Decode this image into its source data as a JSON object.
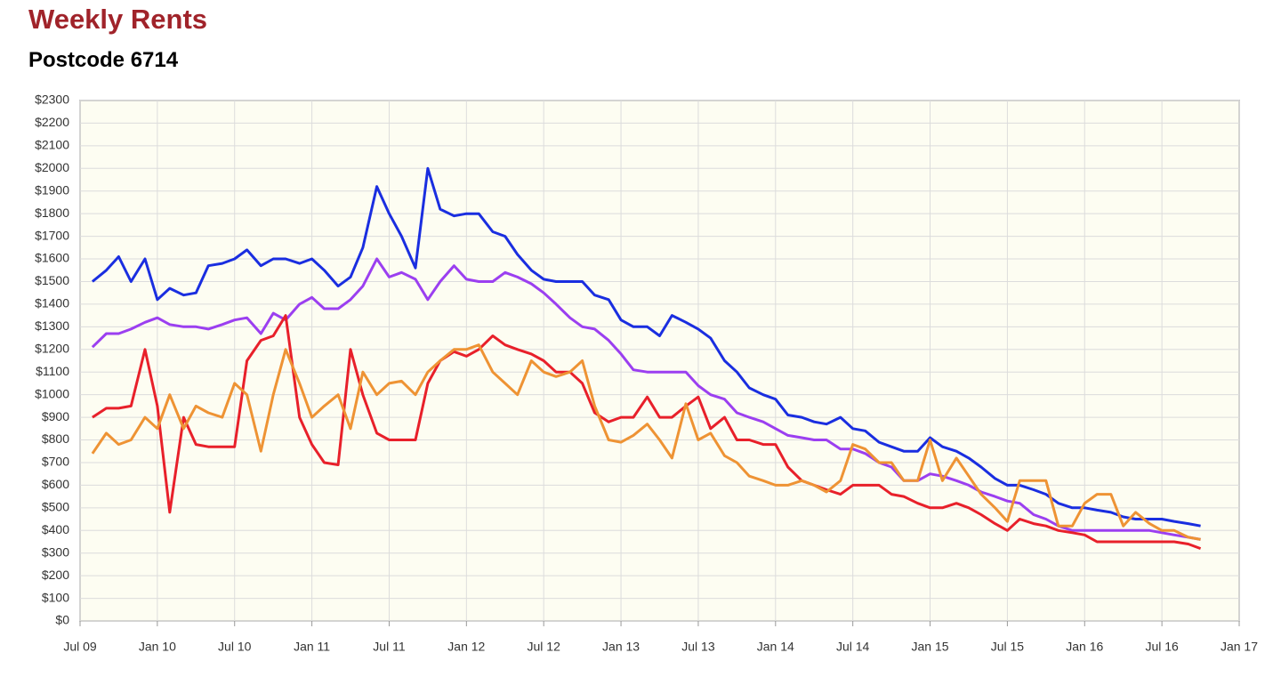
{
  "chart_data": {
    "type": "line",
    "title": "Weekly Rents",
    "subtitle": "Postcode 6714",
    "x": [
      2009.58,
      2009.67,
      2009.75,
      2009.83,
      2009.92,
      2010.0,
      2010.08,
      2010.17,
      2010.25,
      2010.33,
      2010.42,
      2010.5,
      2010.58,
      2010.67,
      2010.75,
      2010.83,
      2010.92,
      2011.0,
      2011.08,
      2011.17,
      2011.25,
      2011.33,
      2011.42,
      2011.5,
      2011.58,
      2011.67,
      2011.75,
      2011.83,
      2011.92,
      2012.0,
      2012.08,
      2012.17,
      2012.25,
      2012.33,
      2012.42,
      2012.5,
      2012.58,
      2012.67,
      2012.75,
      2012.83,
      2012.92,
      2013.0,
      2013.08,
      2013.17,
      2013.25,
      2013.33,
      2013.42,
      2013.5,
      2013.58,
      2013.67,
      2013.75,
      2013.83,
      2013.92,
      2014.0,
      2014.08,
      2014.17,
      2014.25,
      2014.33,
      2014.42,
      2014.5,
      2014.58,
      2014.67,
      2014.75,
      2014.83,
      2014.92,
      2015.0,
      2015.08,
      2015.17,
      2015.25,
      2015.33,
      2015.42,
      2015.5,
      2015.58,
      2015.67,
      2015.75,
      2015.83,
      2015.92,
      2016.0,
      2016.08,
      2016.17,
      2016.25,
      2016.33,
      2016.42,
      2016.5,
      2016.58,
      2016.67,
      2016.75
    ],
    "series": [
      {
        "color": "#1a2ee0",
        "values": [
          1500,
          1550,
          1610,
          1500,
          1600,
          1420,
          1470,
          1440,
          1450,
          1570,
          1580,
          1600,
          1640,
          1570,
          1600,
          1600,
          1580,
          1600,
          1550,
          1480,
          1520,
          1650,
          1920,
          1800,
          1700,
          1560,
          2000,
          1820,
          1790,
          1800,
          1800,
          1720,
          1700,
          1620,
          1550,
          1510,
          1500,
          1500,
          1500,
          1440,
          1420,
          1330,
          1300,
          1300,
          1260,
          1350,
          1320,
          1290,
          1250,
          1150,
          1100,
          1030,
          1000,
          980,
          910,
          900,
          880,
          870,
          900,
          850,
          840,
          790,
          770,
          750,
          750,
          810,
          770,
          750,
          720,
          680,
          630,
          600,
          600,
          580,
          560,
          520,
          500,
          500,
          490,
          480,
          460,
          450,
          450,
          450,
          440,
          430,
          420
        ]
      },
      {
        "color": "#9b3ff0",
        "values": [
          1210,
          1270,
          1270,
          1290,
          1320,
          1340,
          1310,
          1300,
          1300,
          1290,
          1310,
          1330,
          1340,
          1270,
          1360,
          1330,
          1400,
          1430,
          1380,
          1380,
          1420,
          1480,
          1600,
          1520,
          1540,
          1510,
          1420,
          1500,
          1570,
          1510,
          1500,
          1500,
          1540,
          1520,
          1490,
          1450,
          1400,
          1340,
          1300,
          1290,
          1240,
          1180,
          1110,
          1100,
          1100,
          1100,
          1100,
          1040,
          1000,
          980,
          920,
          900,
          880,
          850,
          820,
          810,
          800,
          800,
          760,
          760,
          740,
          700,
          680,
          620,
          620,
          650,
          640,
          620,
          600,
          570,
          550,
          530,
          520,
          470,
          450,
          420,
          400,
          400,
          400,
          400,
          400,
          400,
          400,
          390,
          380,
          370,
          360
        ]
      },
      {
        "color": "#e8202a",
        "values": [
          900,
          940,
          940,
          950,
          1200,
          950,
          480,
          900,
          780,
          770,
          770,
          770,
          1150,
          1240,
          1260,
          1350,
          900,
          780,
          700,
          690,
          1200,
          1000,
          830,
          800,
          800,
          800,
          1050,
          1150,
          1190,
          1170,
          1200,
          1260,
          1220,
          1200,
          1180,
          1150,
          1100,
          1100,
          1050,
          920,
          880,
          900,
          900,
          990,
          900,
          900,
          950,
          990,
          850,
          900,
          800,
          800,
          780,
          780,
          680,
          620,
          600,
          580,
          560,
          600,
          600,
          600,
          560,
          550,
          520,
          500,
          500,
          520,
          500,
          470,
          430,
          400,
          450,
          430,
          420,
          400,
          390,
          380,
          350,
          350,
          350,
          350,
          350,
          350,
          350,
          340,
          320
        ]
      },
      {
        "color": "#ee9334",
        "values": [
          740,
          830,
          780,
          800,
          900,
          850,
          1000,
          850,
          950,
          920,
          900,
          1050,
          1000,
          750,
          1000,
          1200,
          1050,
          900,
          950,
          1000,
          850,
          1100,
          1000,
          1050,
          1060,
          1000,
          1100,
          1150,
          1200,
          1200,
          1220,
          1100,
          1050,
          1000,
          1150,
          1100,
          1080,
          1100,
          1150,
          950,
          800,
          790,
          820,
          870,
          800,
          720,
          960,
          800,
          830,
          730,
          700,
          640,
          620,
          600,
          600,
          620,
          600,
          570,
          620,
          780,
          760,
          700,
          700,
          620,
          620,
          800,
          620,
          720,
          640,
          560,
          500,
          440,
          620,
          620,
          620,
          420,
          420,
          520,
          560,
          560,
          420,
          480,
          430,
          400,
          400,
          370,
          360
        ]
      }
    ],
    "xlim": [
      2009.5,
      2017.0
    ],
    "xticks": [
      {
        "value": 2009.5,
        "label": "Jul 09"
      },
      {
        "value": 2010.0,
        "label": "Jan 10"
      },
      {
        "value": 2010.5,
        "label": "Jul 10"
      },
      {
        "value": 2011.0,
        "label": "Jan 11"
      },
      {
        "value": 2011.5,
        "label": "Jul 11"
      },
      {
        "value": 2012.0,
        "label": "Jan 12"
      },
      {
        "value": 2012.5,
        "label": "Jul 12"
      },
      {
        "value": 2013.0,
        "label": "Jan 13"
      },
      {
        "value": 2013.5,
        "label": "Jul 13"
      },
      {
        "value": 2014.0,
        "label": "Jan 14"
      },
      {
        "value": 2014.5,
        "label": "Jul 14"
      },
      {
        "value": 2015.0,
        "label": "Jan 15"
      },
      {
        "value": 2015.5,
        "label": "Jul 15"
      },
      {
        "value": 2016.0,
        "label": "Jan 16"
      },
      {
        "value": 2016.5,
        "label": "Jul 16"
      },
      {
        "value": 2017.0,
        "label": "Jan 17"
      }
    ],
    "ylim": [
      0,
      2300
    ],
    "yticks": [
      {
        "value": 0,
        "label": "$0"
      },
      {
        "value": 100,
        "label": "$100"
      },
      {
        "value": 200,
        "label": "$200"
      },
      {
        "value": 300,
        "label": "$300"
      },
      {
        "value": 400,
        "label": "$400"
      },
      {
        "value": 500,
        "label": "$500"
      },
      {
        "value": 600,
        "label": "$600"
      },
      {
        "value": 700,
        "label": "$700"
      },
      {
        "value": 800,
        "label": "$800"
      },
      {
        "value": 900,
        "label": "$900"
      },
      {
        "value": 1000,
        "label": "$1000"
      },
      {
        "value": 1100,
        "label": "$1100"
      },
      {
        "value": 1200,
        "label": "$1200"
      },
      {
        "value": 1300,
        "label": "$1300"
      },
      {
        "value": 1400,
        "label": "$1400"
      },
      {
        "value": 1500,
        "label": "$1500"
      },
      {
        "value": 1600,
        "label": "$1600"
      },
      {
        "value": 1700,
        "label": "$1700"
      },
      {
        "value": 1800,
        "label": "$1800"
      },
      {
        "value": 1900,
        "label": "$1900"
      },
      {
        "value": 2000,
        "label": "$2000"
      },
      {
        "value": 2100,
        "label": "$2100"
      },
      {
        "value": 2200,
        "label": "$2200"
      },
      {
        "value": 2300,
        "label": "$2300"
      }
    ],
    "grid": true
  }
}
